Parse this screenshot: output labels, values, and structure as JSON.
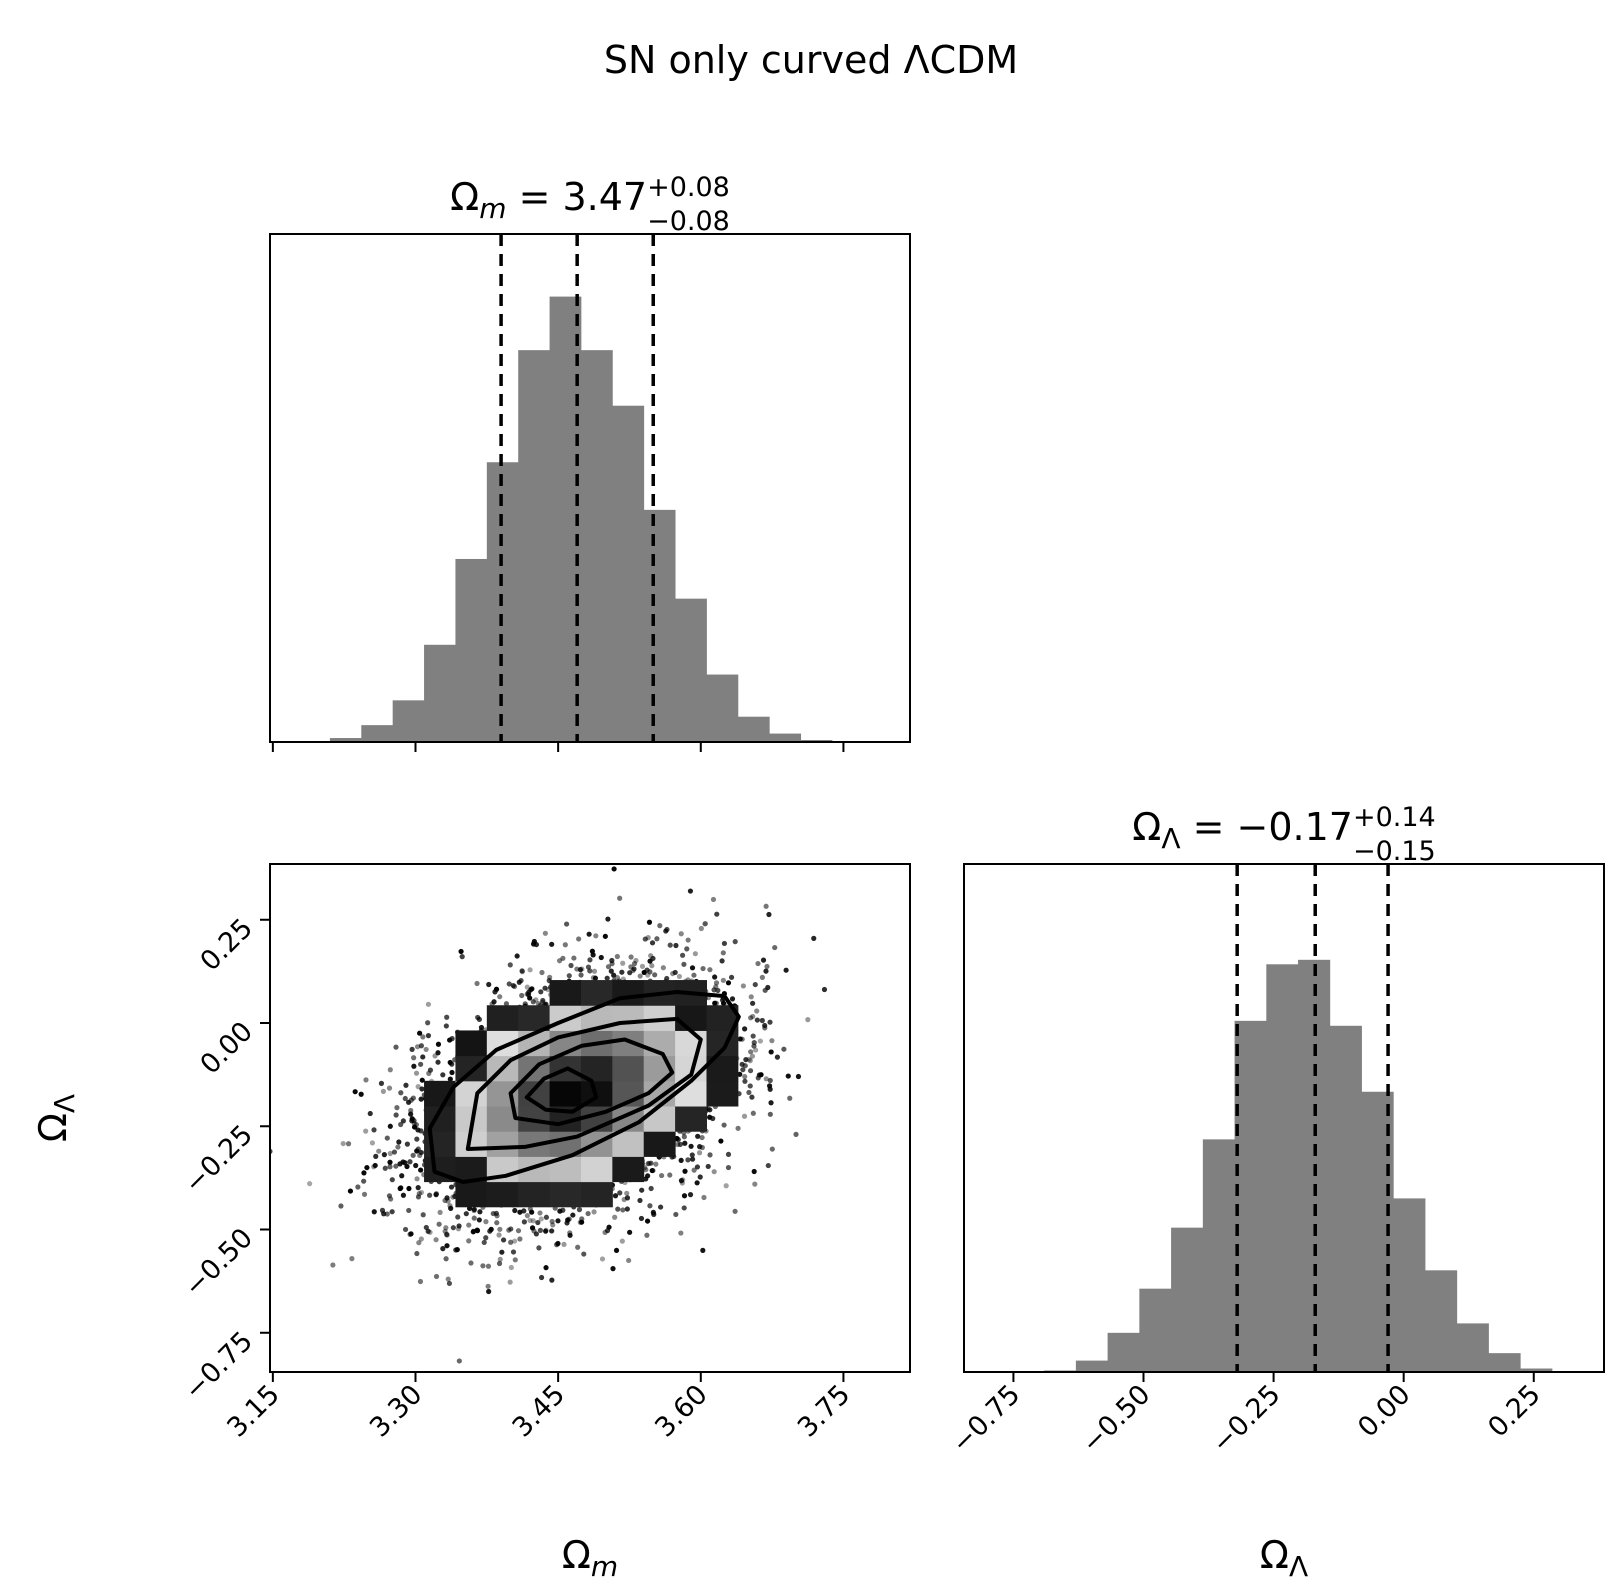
{
  "chart_data": {
    "type": "corner",
    "title": "SN only curved ΛCDM",
    "parameters": [
      {
        "symbol": "Ω",
        "sub": "m"
      },
      {
        "symbol": "Ω",
        "sub": "Λ"
      }
    ],
    "panel_titles": [
      {
        "text": "Ω",
        "sub": "m",
        "value": " = 3.47",
        "plus": "+0.08",
        "minus": "−0.08"
      },
      {
        "text": "Ω",
        "sub": "Λ",
        "value": " = −0.17",
        "plus": "+0.14",
        "minus": "−0.15"
      }
    ],
    "om_axis": {
      "range": [
        3.147,
        3.82
      ],
      "ticks": [
        3.15,
        3.3,
        3.45,
        3.6,
        3.75
      ],
      "tick_labels": [
        "3.15",
        "3.30",
        "3.45",
        "3.60",
        "3.75"
      ]
    },
    "ol_axis": {
      "range": [
        -0.845,
        0.385
      ],
      "ticks": [
        -0.75,
        -0.5,
        -0.25,
        0.0,
        0.25
      ],
      "tick_labels": [
        "−0.75",
        "−0.50",
        "−0.25",
        "0.00",
        "0.25"
      ]
    },
    "hist_om": {
      "bin_edges": [
        3.21,
        3.243,
        3.276,
        3.309,
        3.342,
        3.375,
        3.408,
        3.441,
        3.474,
        3.507,
        3.54,
        3.573,
        3.606,
        3.639,
        3.672,
        3.705,
        3.738,
        3.771
      ],
      "counts": [
        0.008,
        0.034,
        0.084,
        0.196,
        0.369,
        0.564,
        0.79,
        0.898,
        0.79,
        0.678,
        0.468,
        0.289,
        0.136,
        0.051,
        0.017,
        0.004,
        0.0
      ],
      "quantiles": [
        3.39,
        3.47,
        3.55
      ]
    },
    "hist_ol": {
      "bin_edges": [
        -0.752,
        -0.691,
        -0.63,
        -0.569,
        -0.508,
        -0.447,
        -0.386,
        -0.325,
        -0.264,
        -0.203,
        -0.142,
        -0.081,
        -0.02,
        0.041,
        0.102,
        0.163,
        0.224,
        0.285
      ],
      "counts": [
        0.0,
        0.003,
        0.023,
        0.079,
        0.168,
        0.291,
        0.469,
        0.708,
        0.822,
        0.831,
        0.698,
        0.565,
        0.35,
        0.205,
        0.098,
        0.038,
        0.007
      ],
      "quantiles": [
        -0.32,
        -0.17,
        -0.03
      ]
    },
    "contours_2d": [
      {
        "level": "inner",
        "points": [
          [
            3.417,
            -0.18
          ],
          [
            3.435,
            -0.135
          ],
          [
            3.46,
            -0.11
          ],
          [
            3.485,
            -0.14
          ],
          [
            3.49,
            -0.18
          ],
          [
            3.465,
            -0.215
          ],
          [
            3.437,
            -0.21
          ]
        ]
      },
      {
        "level": "middle",
        "points": [
          [
            3.405,
            -0.23
          ],
          [
            3.4,
            -0.17
          ],
          [
            3.43,
            -0.1
          ],
          [
            3.475,
            -0.055
          ],
          [
            3.52,
            -0.04
          ],
          [
            3.56,
            -0.075
          ],
          [
            3.57,
            -0.12
          ],
          [
            3.545,
            -0.17
          ],
          [
            3.5,
            -0.215
          ],
          [
            3.45,
            -0.245
          ]
        ]
      },
      {
        "level": "outer",
        "points": [
          [
            3.355,
            -0.305
          ],
          [
            3.365,
            -0.17
          ],
          [
            3.4,
            -0.09
          ],
          [
            3.45,
            -0.035
          ],
          [
            3.515,
            0.0
          ],
          [
            3.575,
            0.01
          ],
          [
            3.6,
            -0.04
          ],
          [
            3.59,
            -0.125
          ],
          [
            3.545,
            -0.2
          ],
          [
            3.47,
            -0.275
          ],
          [
            3.415,
            -0.3
          ]
        ]
      },
      {
        "level": "outermost",
        "points": [
          [
            3.32,
            -0.36
          ],
          [
            3.315,
            -0.255
          ],
          [
            3.34,
            -0.155
          ],
          [
            3.385,
            -0.065
          ],
          [
            3.45,
            0.0
          ],
          [
            3.515,
            0.06
          ],
          [
            3.575,
            0.075
          ],
          [
            3.625,
            0.065
          ],
          [
            3.64,
            0.015
          ],
          [
            3.625,
            -0.06
          ],
          [
            3.59,
            -0.14
          ],
          [
            3.535,
            -0.24
          ],
          [
            3.465,
            -0.32
          ],
          [
            3.395,
            -0.37
          ],
          [
            3.35,
            -0.385
          ]
        ]
      }
    ],
    "samples_2d": {
      "center": [
        3.47,
        -0.17
      ],
      "sigma": [
        0.08,
        0.145
      ],
      "correlation": 0.35
    },
    "colors": {
      "hist_fill": "#808080",
      "contour": "#000000",
      "density_dark": "#000000",
      "density_light": "#ffffff"
    }
  }
}
